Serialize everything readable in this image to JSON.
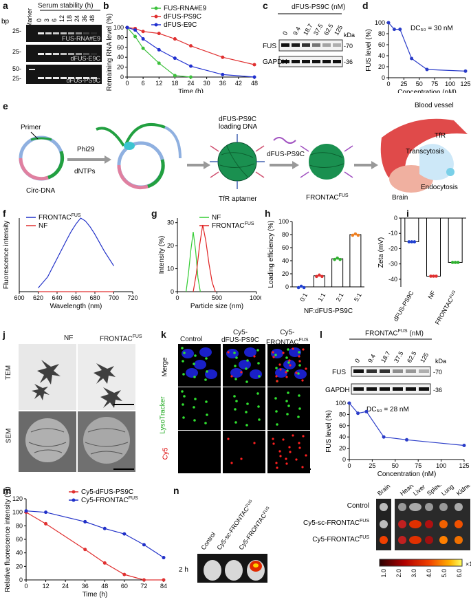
{
  "panel_letters": {
    "a": "a",
    "b": "b",
    "c": "c",
    "d": "d",
    "e": "e",
    "f": "f",
    "g": "g",
    "h": "h",
    "i": "i",
    "j": "j",
    "k": "k",
    "l": "l",
    "m": "m",
    "n": "n"
  },
  "panel_a": {
    "title": "Serum stability (h)",
    "marker": "Marker",
    "bp": "bp",
    "lanes": [
      "0",
      "3",
      "6",
      "12",
      "18",
      "24",
      "36",
      "48"
    ],
    "gels": [
      {
        "label": "FUS-RNA#E9",
        "ticks": [
          "25-"
        ]
      },
      {
        "label": "dFUS-E9C",
        "ticks": [
          "25-"
        ]
      },
      {
        "label": "dFUS-PS9C",
        "ticks": [
          "50-",
          "25-"
        ]
      }
    ]
  },
  "panel_c": {
    "title": "dFUS-PS9C (nM)",
    "conc": [
      "0",
      "9.4",
      "18.7",
      "37.5",
      "62.5",
      "125"
    ],
    "kda": "kDa",
    "rows": [
      {
        "name": "FUS",
        "mw": "-70"
      },
      {
        "name": "GAPDH",
        "mw": "-36"
      }
    ]
  },
  "panel_e": {
    "primer": "Primer",
    "circ": "Circ-DNA",
    "phi": "Phi29",
    "dntps": "dNTPs",
    "loading": "dFUS-PS9C",
    "loading2": "loading DNA",
    "tfr_apt": "TfR aptamer",
    "dfus": "dFUS-PS9C",
    "frontac": "FRONTAC",
    "frontac_sup": "FUS",
    "blood": "Blood vessel",
    "tfr": "TfR",
    "transcytosis": "Transcytosis",
    "endocytosis": "Endocytosis",
    "brain": "Brain"
  },
  "panel_j": {
    "col1": "NF",
    "col2": "FRONTAC",
    "col2_sup": "FUS",
    "row1": "TEM",
    "row2": "SEM"
  },
  "panel_k": {
    "cols": [
      "Control",
      "Cy5-\ndFUS-PS9C",
      "Cy5-\nFRONTAC"
    ],
    "col1": "Control",
    "col2a": "Cy5-",
    "col2b": "dFUS-PS9C",
    "col3a": "Cy5-",
    "col3b": "FRONTAC",
    "col3_sup": "FUS",
    "row1": "Merge",
    "row2": "LysoTracker",
    "row3": "Cy5"
  },
  "panel_l": {
    "title": "FRONTAC",
    "title_sup": "FUS",
    "title_unit": " (nM)",
    "conc": [
      "0",
      "9.4",
      "18.7",
      "37.5",
      "62.5",
      "125"
    ],
    "kda": "kDa",
    "rows": [
      {
        "name": "FUS",
        "mw": "-70"
      },
      {
        "name": "GAPDH",
        "mw": "-36"
      }
    ]
  },
  "panel_n": {
    "time": "2 h",
    "mice": [
      "Control",
      "Cy5-sc-FRONTAC",
      "Cy5-FRONTAC"
    ],
    "mouse_sup": "FUS",
    "organs": [
      "Brain",
      "Heart",
      "Liver",
      "Spleen",
      "Lung",
      "Kidney"
    ],
    "rows": [
      "Control",
      "Cy5-sc-FRONTAC",
      "Cy5-FRONTAC"
    ],
    "row_sup": "FUS",
    "scale_ticks": [
      "1.0",
      "2.0",
      "3.0",
      "4.0",
      "5.0",
      "6.0"
    ],
    "scale_unit": "×10⁹"
  },
  "chart_data": [
    {
      "id": "b",
      "type": "line",
      "xlabel": "Time (h)",
      "ylabel": "Remaining RNA level (%)",
      "xlim": [
        0,
        48
      ],
      "ylim": [
        0,
        100
      ],
      "xticks": [
        0,
        6,
        12,
        18,
        24,
        30,
        36,
        42,
        48
      ],
      "yticks": [
        0,
        20,
        40,
        60,
        80,
        100
      ],
      "series": [
        {
          "name": "FUS-RNA#E9",
          "color": "#3cc03c",
          "x": [
            0,
            3,
            6,
            12,
            18,
            24
          ],
          "y": [
            100,
            82,
            58,
            28,
            3,
            0
          ]
        },
        {
          "name": "dFUS-PS9C",
          "color": "#e03030",
          "x": [
            0,
            3,
            6,
            12,
            18,
            24,
            36,
            48
          ],
          "y": [
            100,
            98,
            92,
            88,
            77,
            63,
            40,
            25
          ]
        },
        {
          "name": "dFUS-E9C",
          "color": "#2030d0",
          "x": [
            0,
            3,
            6,
            12,
            18,
            24,
            36,
            48
          ],
          "y": [
            100,
            95,
            77,
            55,
            38,
            22,
            5,
            0
          ]
        }
      ]
    },
    {
      "id": "d",
      "type": "line",
      "title": "DC₅₀ = 30 nM",
      "xlabel": "Concentration (nM)",
      "ylabel": "FUS level (%)",
      "xlim": [
        0,
        125
      ],
      "ylim": [
        0,
        100
      ],
      "xticks": [
        0,
        25,
        50,
        75,
        100,
        125
      ],
      "yticks": [
        0,
        20,
        40,
        60,
        80,
        100
      ],
      "series": [
        {
          "color": "#2a3cc8",
          "x": [
            0,
            9.4,
            18.7,
            37.5,
            62.5,
            125
          ],
          "y": [
            100,
            88,
            88,
            35,
            15,
            12
          ]
        }
      ]
    },
    {
      "id": "f",
      "type": "line",
      "xlabel": "Wavelength (nm)",
      "ylabel": "Fluorescence intensity",
      "xlim": [
        600,
        720
      ],
      "xticks": [
        600,
        620,
        640,
        660,
        680,
        700,
        720
      ],
      "series": [
        {
          "name": "FRONTAC",
          "name_sup": "FUS",
          "color": "#2030c8",
          "x": [
            620,
            630,
            640,
            650,
            655,
            660,
            665,
            670,
            675,
            680,
            690,
            700
          ],
          "y": [
            5,
            20,
            45,
            70,
            82,
            92,
            100,
            96,
            88,
            78,
            55,
            35
          ]
        },
        {
          "name": "NF",
          "color": "#e03030",
          "x": [
            620,
            700
          ],
          "y": [
            0,
            0
          ]
        }
      ]
    },
    {
      "id": "g",
      "type": "line",
      "xlabel": "Particle size (nm)",
      "ylabel": "Intensity (%)",
      "xlim": [
        0,
        1000
      ],
      "xticks": [
        0,
        500,
        1000
      ],
      "yticks": [
        0,
        10,
        20,
        30
      ],
      "ylim": [
        0,
        32
      ],
      "series": [
        {
          "name": "NF",
          "color": "#33cc33",
          "x": [
            110,
            140,
            170,
            200,
            230,
            260,
            290
          ],
          "y": [
            0,
            8,
            18,
            26,
            18,
            6,
            0
          ]
        },
        {
          "name": "FRONTAC",
          "name_sup": "FUS",
          "color": "#e02020",
          "x": [
            200,
            240,
            280,
            320,
            360,
            400,
            440,
            480
          ],
          "y": [
            0,
            8,
            20,
            29,
            22,
            12,
            4,
            0
          ]
        }
      ]
    },
    {
      "id": "h",
      "type": "bar",
      "xlabel": "NF:dFUS-PS9C",
      "ylabel": "Loading efficiency (%)",
      "categories": [
        "0:1",
        "1:1",
        "2:1",
        "5:1"
      ],
      "values": [
        0,
        17,
        43,
        80
      ],
      "ylim": [
        0,
        100
      ],
      "yticks": [
        0,
        20,
        40,
        60,
        80,
        100
      ],
      "point_colors": [
        "#2040d0",
        "#e03030",
        "#30b030",
        "#f08020"
      ]
    },
    {
      "id": "i",
      "type": "bar",
      "ylabel": "Zeta (mV)",
      "categories": [
        "dFUS-PS9C",
        "NF",
        "FRONTAC"
      ],
      "category_sups": [
        "",
        "",
        "FUS"
      ],
      "values": [
        -15.5,
        -38,
        -29
      ],
      "ylim": [
        -45,
        0
      ],
      "yticks": [
        0,
        -10,
        -20,
        -30,
        -40
      ],
      "point_colors": [
        "#2040d0",
        "#e03030",
        "#30b030"
      ]
    },
    {
      "id": "l",
      "type": "line",
      "title": "DC₅₀ = 28 nM",
      "xlabel": "Concentration (nM)",
      "ylabel": "FUS level (%)",
      "xlim": [
        0,
        125
      ],
      "ylim": [
        0,
        100
      ],
      "xticks": [
        0,
        25,
        50,
        75,
        100,
        125
      ],
      "yticks": [
        0,
        20,
        40,
        60,
        80,
        100
      ],
      "series": [
        {
          "color": "#2a3cc8",
          "x": [
            0,
            9.4,
            18.7,
            37.5,
            62.5,
            125
          ],
          "y": [
            100,
            82,
            85,
            40,
            35,
            25
          ]
        }
      ]
    },
    {
      "id": "m",
      "type": "line",
      "xlabel": "Time (h)",
      "ylabel": "Relative fluorescence intensity (%)",
      "xlim": [
        0,
        84
      ],
      "ylim": [
        0,
        120
      ],
      "xticks": [
        0,
        12,
        24,
        36,
        48,
        60,
        72,
        84
      ],
      "yticks": [
        0,
        20,
        40,
        60,
        80,
        100,
        120
      ],
      "series": [
        {
          "name": "Cy5-dFUS-PS9C",
          "color": "#e03030",
          "x": [
            0,
            12,
            36,
            48,
            60,
            72,
            84
          ],
          "y": [
            100,
            83,
            45,
            25,
            8,
            0,
            0
          ]
        },
        {
          "name": "Cy5-FRONTAC",
          "name_sup": "FUS",
          "color": "#2030c8",
          "x": [
            0,
            12,
            36,
            48,
            60,
            72,
            84
          ],
          "y": [
            102,
            100,
            86,
            76,
            68,
            52,
            33
          ]
        }
      ]
    }
  ]
}
